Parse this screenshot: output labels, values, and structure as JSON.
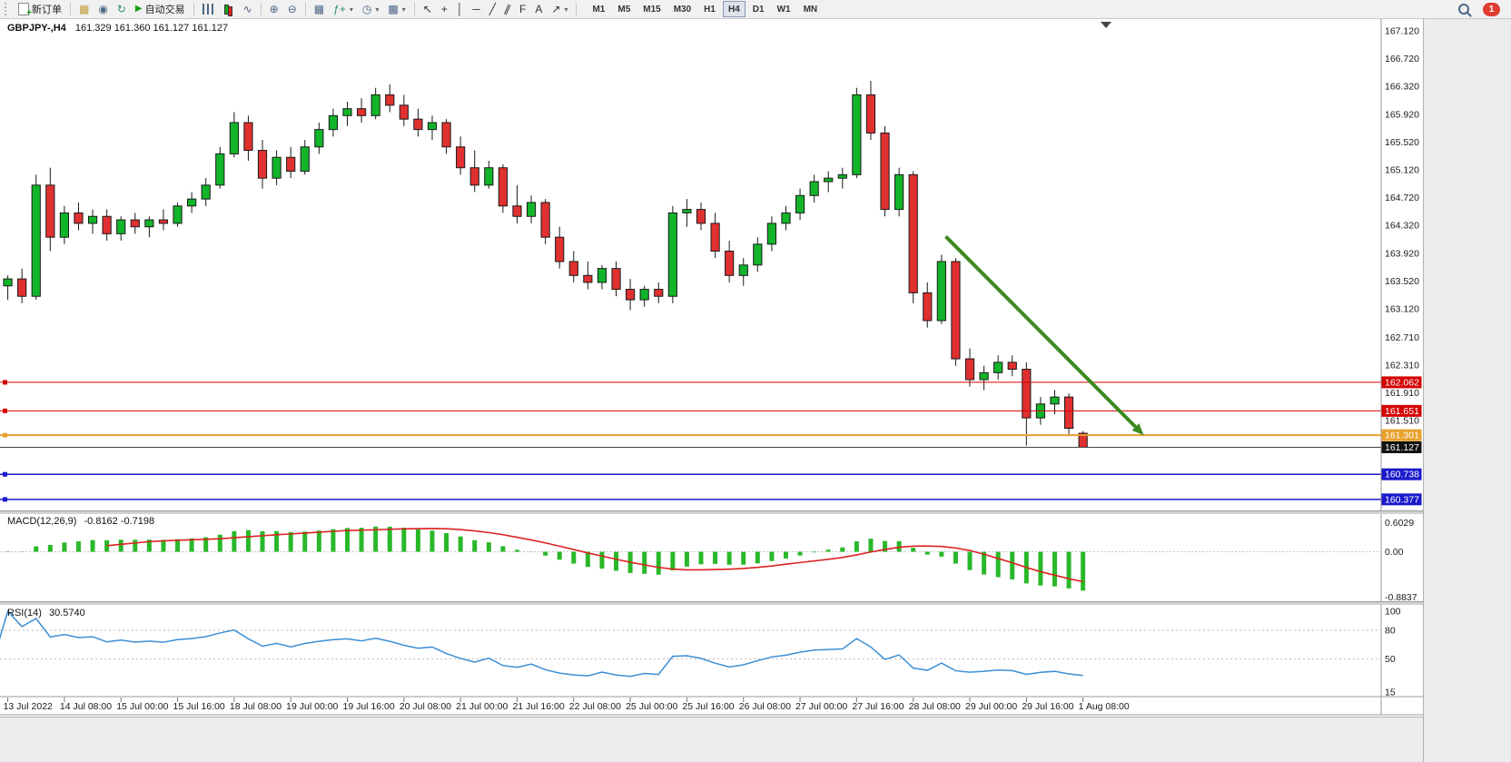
{
  "toolbar": {
    "new_order_label": "新订单",
    "auto_trading_label": "自动交易",
    "timeframes": [
      "M1",
      "M5",
      "M15",
      "M30",
      "H1",
      "H4",
      "D1",
      "W1",
      "MN"
    ],
    "active_timeframe": "H4",
    "notification_count": "1"
  },
  "chart_data": {
    "type": "candlestick",
    "symbol": "GBPJPY-",
    "timeframe": "H4",
    "header_symbol_period": "GBPJPY-,H4",
    "header_ohlc": "161.329 161.360 161.127 161.127",
    "colors": {
      "candle_up": "#12b42a",
      "candle_down": "#e03030",
      "candle_outline": "#1a1a1a",
      "macd_histogram": "#29b829",
      "macd_signal": "#dd2222",
      "rsi_line": "#3b8fd6",
      "arrow": "#3c8a1e"
    },
    "price_axis_labels": [
      "167.120",
      "166.720",
      "166.320",
      "165.920",
      "165.520",
      "165.120",
      "164.720",
      "164.320",
      "163.920",
      "163.520",
      "163.120",
      "162.710",
      "162.310",
      "161.910",
      "161.510"
    ],
    "time_labels": [
      "13 Jul 2022",
      "14 Jul 08:00",
      "15 Jul 00:00",
      "15 Jul 16:00",
      "18 Jul 08:00",
      "19 Jul 00:00",
      "19 Jul 16:00",
      "20 Jul 08:00",
      "21 Jul 00:00",
      "21 Jul 16:00",
      "22 Jul 08:00",
      "25 Jul 00:00",
      "25 Jul 16:00",
      "26 Jul 08:00",
      "27 Jul 00:00",
      "27 Jul 16:00",
      "28 Jul 08:00",
      "29 Jul 00:00",
      "29 Jul 16:00",
      "1 Aug 08:00"
    ],
    "first_label_candle_index": 1,
    "label_every_n_candles": 4,
    "candles": [
      [
        163.55,
        163.7,
        163.35,
        163.45
      ],
      [
        163.45,
        163.6,
        163.25,
        163.55
      ],
      [
        163.55,
        163.7,
        163.2,
        163.3
      ],
      [
        163.3,
        165.05,
        163.25,
        164.9
      ],
      [
        164.9,
        165.15,
        163.95,
        164.15
      ],
      [
        164.15,
        164.6,
        164.05,
        164.5
      ],
      [
        164.5,
        164.65,
        164.25,
        164.35
      ],
      [
        164.35,
        164.55,
        164.2,
        164.45
      ],
      [
        164.45,
        164.55,
        164.1,
        164.2
      ],
      [
        164.2,
        164.45,
        164.1,
        164.4
      ],
      [
        164.4,
        164.5,
        164.2,
        164.3
      ],
      [
        164.3,
        164.45,
        164.15,
        164.4
      ],
      [
        164.4,
        164.55,
        164.25,
        164.35
      ],
      [
        164.35,
        164.65,
        164.3,
        164.6
      ],
      [
        164.6,
        164.8,
        164.5,
        164.7
      ],
      [
        164.7,
        165.0,
        164.6,
        164.9
      ],
      [
        164.9,
        165.45,
        164.85,
        165.35
      ],
      [
        165.35,
        165.95,
        165.3,
        165.8
      ],
      [
        165.8,
        165.9,
        165.25,
        165.4
      ],
      [
        165.4,
        165.55,
        164.85,
        165.0
      ],
      [
        165.0,
        165.4,
        164.9,
        165.3
      ],
      [
        165.3,
        165.45,
        165.0,
        165.1
      ],
      [
        165.1,
        165.55,
        165.05,
        165.45
      ],
      [
        165.45,
        165.8,
        165.35,
        165.7
      ],
      [
        165.7,
        166.0,
        165.6,
        165.9
      ],
      [
        165.9,
        166.1,
        165.75,
        166.0
      ],
      [
        166.0,
        166.15,
        165.8,
        165.9
      ],
      [
        165.9,
        166.3,
        165.85,
        166.2
      ],
      [
        166.2,
        166.35,
        165.95,
        166.05
      ],
      [
        166.05,
        166.2,
        165.75,
        165.85
      ],
      [
        165.85,
        166.0,
        165.6,
        165.7
      ],
      [
        165.7,
        165.9,
        165.55,
        165.8
      ],
      [
        165.8,
        165.85,
        165.35,
        165.45
      ],
      [
        165.45,
        165.6,
        165.05,
        165.15
      ],
      [
        165.15,
        165.4,
        164.8,
        164.9
      ],
      [
        164.9,
        165.25,
        164.85,
        165.15
      ],
      [
        165.15,
        165.2,
        164.5,
        164.6
      ],
      [
        164.6,
        164.9,
        164.35,
        164.45
      ],
      [
        164.45,
        164.75,
        164.35,
        164.65
      ],
      [
        164.65,
        164.7,
        164.05,
        164.15
      ],
      [
        164.15,
        164.3,
        163.7,
        163.8
      ],
      [
        163.8,
        163.95,
        163.5,
        163.6
      ],
      [
        163.6,
        163.8,
        163.4,
        163.5
      ],
      [
        163.5,
        163.75,
        163.4,
        163.7
      ],
      [
        163.7,
        163.8,
        163.3,
        163.4
      ],
      [
        163.4,
        163.55,
        163.1,
        163.25
      ],
      [
        163.25,
        163.45,
        163.15,
        163.4
      ],
      [
        163.4,
        163.5,
        163.2,
        163.3
      ],
      [
        163.3,
        164.6,
        163.2,
        164.5
      ],
      [
        164.5,
        164.7,
        164.3,
        164.55
      ],
      [
        164.55,
        164.65,
        164.25,
        164.35
      ],
      [
        164.35,
        164.5,
        163.85,
        163.95
      ],
      [
        163.95,
        164.1,
        163.5,
        163.6
      ],
      [
        163.6,
        163.85,
        163.45,
        163.75
      ],
      [
        163.75,
        164.15,
        163.65,
        164.05
      ],
      [
        164.05,
        164.45,
        163.95,
        164.35
      ],
      [
        164.35,
        164.6,
        164.25,
        164.5
      ],
      [
        164.5,
        164.85,
        164.4,
        164.75
      ],
      [
        164.75,
        165.05,
        164.65,
        164.95
      ],
      [
        164.95,
        165.1,
        164.8,
        165.0
      ],
      [
        165.0,
        165.15,
        164.85,
        165.05
      ],
      [
        165.05,
        166.3,
        165.0,
        166.2
      ],
      [
        166.2,
        166.4,
        165.55,
        165.65
      ],
      [
        165.65,
        165.75,
        164.45,
        164.55
      ],
      [
        164.55,
        165.15,
        164.45,
        165.05
      ],
      [
        165.05,
        165.1,
        163.2,
        163.35
      ],
      [
        163.35,
        163.5,
        162.85,
        162.95
      ],
      [
        162.95,
        163.9,
        162.9,
        163.8
      ],
      [
        163.8,
        163.85,
        162.3,
        162.4
      ],
      [
        162.4,
        162.55,
        162.0,
        162.1
      ],
      [
        162.1,
        162.3,
        161.95,
        162.2
      ],
      [
        162.2,
        162.45,
        162.1,
        162.35
      ],
      [
        162.35,
        162.45,
        162.15,
        162.25
      ],
      [
        162.25,
        162.35,
        161.15,
        161.55
      ],
      [
        161.55,
        161.85,
        161.45,
        161.75
      ],
      [
        161.75,
        161.95,
        161.6,
        161.85
      ],
      [
        161.85,
        161.9,
        161.3,
        161.4
      ],
      [
        161.329,
        161.36,
        161.127,
        161.127
      ]
    ],
    "hlines": [
      {
        "name": "resistance-line-1",
        "price": 162.062,
        "label": "162.062",
        "color": "#d40000",
        "badge": "#d40000",
        "width": 1,
        "anchor": true,
        "draggable": true
      },
      {
        "name": "resistance-line-2",
        "price": 161.651,
        "label": "161.651",
        "color": "#d40000",
        "badge": "#d40000",
        "width": 1,
        "anchor": true,
        "draggable": true
      },
      {
        "name": "support-line-orange",
        "price": 161.301,
        "label": "161.301",
        "color": "#e8a02c",
        "badge": "#e8a02c",
        "width": 2,
        "anchor": true,
        "draggable": true
      },
      {
        "name": "current-price-line",
        "price": 161.127,
        "label": "161.127",
        "color": "#444444",
        "badge": "#111111",
        "width": 1,
        "anchor": false,
        "draggable": false
      },
      {
        "name": "support-line-blue-1",
        "price": 160.738,
        "label": "160.738",
        "color": "#1a1acc",
        "badge": "#1a1acc",
        "width": 1.5,
        "anchor": true,
        "draggable": true
      },
      {
        "name": "support-line-blue-2",
        "price": 160.377,
        "label": "160.377",
        "color": "#1a1acc",
        "badge": "#1a1acc",
        "width": 1.5,
        "anchor": true,
        "draggable": true
      }
    ],
    "arrow": {
      "from_candle": 67.3,
      "from_price": 164.16,
      "to_candle": 81.3,
      "to_price": 161.3,
      "color": "#3c8a1e"
    },
    "macd": {
      "label": "MACD(12,26,9)",
      "values_text": "-0.8162 -0.7198",
      "params": [
        12,
        26,
        9
      ],
      "axis_labels": [
        "0.6029",
        "0.00",
        "-0.8837"
      ]
    },
    "rsi": {
      "label": "RSI(14)",
      "value_text": "30.5740",
      "period": 14,
      "axis_labels": [
        "100",
        "80",
        "50",
        "15"
      ],
      "levels": [
        80,
        50
      ],
      "scale_min": 15,
      "scale_max": 100
    }
  }
}
